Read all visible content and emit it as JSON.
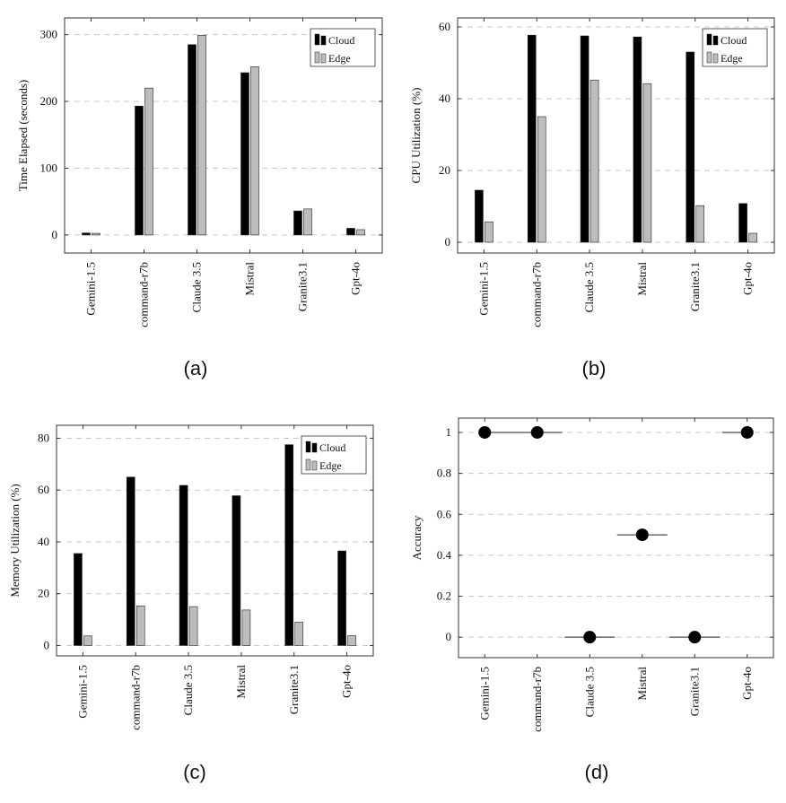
{
  "colors": {
    "cloud": "#000000",
    "edge": "#bdbdbd",
    "axis": "#333333",
    "grid": "#c8c8c8"
  },
  "chart_data": [
    {
      "id": "a",
      "type": "bar",
      "caption": "(a)",
      "ylabel": "Time Elapsed (seconds)",
      "categories": [
        "Gemini-1.5",
        "command-r7b",
        "Claude 3.5",
        "Mistral",
        "Granite3.1",
        "Gpt-4o"
      ],
      "series": [
        {
          "name": "Cloud",
          "values": [
            3,
            193,
            285,
            243,
            36,
            10
          ]
        },
        {
          "name": "Edge",
          "values": [
            2.5,
            220,
            299,
            252,
            39,
            8
          ]
        }
      ],
      "ylim": [
        -27,
        325
      ],
      "yticks": [
        0,
        100,
        200,
        300
      ],
      "yticklabels": [
        "0",
        "100",
        "200",
        "300"
      ],
      "grid": true,
      "legend": "top-right"
    },
    {
      "id": "b",
      "type": "bar",
      "caption": "(b)",
      "ylabel": "CPU Utilization (%)",
      "categories": [
        "Gemini-1.5",
        "command-r7b",
        "Claude 3.5",
        "Mistral",
        "Granite3.1",
        "Gpt-4o"
      ],
      "series": [
        {
          "name": "Cloud",
          "values": [
            14.5,
            57.7,
            57.5,
            57.2,
            53,
            10.8
          ]
        },
        {
          "name": "Edge",
          "values": [
            5.7,
            35,
            45.2,
            44.2,
            10.2,
            2.5
          ]
        }
      ],
      "ylim": [
        -3,
        62.5
      ],
      "yticks": [
        0,
        20,
        40,
        60
      ],
      "yticklabels": [
        "0",
        "20",
        "40",
        "60"
      ],
      "grid": true,
      "legend": "top-right"
    },
    {
      "id": "c",
      "type": "bar",
      "caption": "(c)",
      "ylabel": "Memory Utilization (%)",
      "categories": [
        "Gemini-1.5",
        "command-r7b",
        "Claude 3.5",
        "Mistral",
        "Granite3.1",
        "Gpt-4o"
      ],
      "series": [
        {
          "name": "Cloud",
          "values": [
            35.5,
            65,
            61.8,
            57.8,
            77.5,
            36.5
          ]
        },
        {
          "name": "Edge",
          "values": [
            3.7,
            15.3,
            15,
            13.7,
            9,
            3.8
          ]
        }
      ],
      "ylim": [
        -4,
        85
      ],
      "yticks": [
        0,
        20,
        40,
        60,
        80
      ],
      "yticklabels": [
        "0",
        "20",
        "40",
        "60",
        "80"
      ],
      "grid": true,
      "legend": "top-right"
    },
    {
      "id": "d",
      "type": "scatter",
      "caption": "(d)",
      "ylabel": "Accuracy",
      "categories": [
        "Gemini-1.5",
        "command-r7b",
        "Claude 3.5",
        "Mistral",
        "Granite3.1",
        "Gpt-4o"
      ],
      "values": [
        1,
        1,
        0,
        0.5,
        0,
        1
      ],
      "ylim": [
        -0.1,
        1.07
      ],
      "yticks": [
        0,
        0.2,
        0.4,
        0.6,
        0.8,
        1
      ],
      "yticklabels": [
        "0",
        "0.2",
        "0.4",
        "0.6",
        "0.8",
        "1"
      ],
      "grid": true
    }
  ]
}
